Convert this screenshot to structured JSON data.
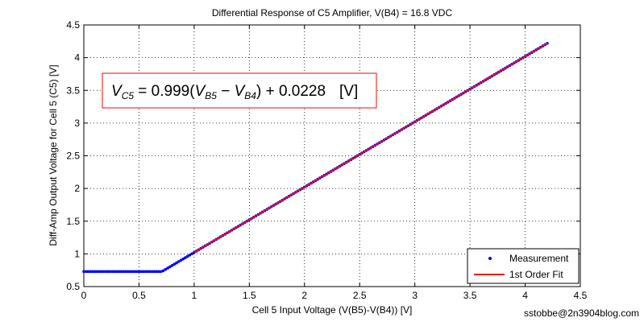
{
  "chart_data": {
    "type": "scatter",
    "title": "Differential Response of C5 Amplifier, V(B4) = 16.8 VDC",
    "xlabel": "Cell 5 Input Voltage (V(B5)-V(B4)) [V]",
    "ylabel": "Diff-Amp Output Voltage for Cell 5 (C5) [V]",
    "xlim": [
      0,
      4.5
    ],
    "ylim": [
      0.5,
      4.5
    ],
    "xticks": [
      0,
      0.5,
      1,
      1.5,
      2,
      2.5,
      3,
      3.5,
      4,
      4.5
    ],
    "xtick_labels": [
      "0",
      "0.5",
      "1",
      "1.5",
      "2",
      "2.5",
      "3",
      "3.5",
      "4",
      "4.5"
    ],
    "yticks": [
      0.5,
      1,
      1.5,
      2,
      2.5,
      3,
      3.5,
      4,
      4.5
    ],
    "ytick_labels": [
      "0.5",
      "1",
      "1.5",
      "2",
      "2.5",
      "3",
      "3.5",
      "4",
      "4.5"
    ],
    "grid": true,
    "legend_position": "bottom-right",
    "series": [
      {
        "name": "Measurement",
        "kind": "points",
        "color": "#0000ff",
        "description": "flat at 0.73 V from 0 to 0.72 V, then rising linearly to 4.22 V at 4.2 V",
        "x_start": 0,
        "x_end": 4.2,
        "x_step": 0.02,
        "knee_x": 0.72,
        "floor_y": 0.73,
        "slope": 0.999,
        "intercept": 0.0228
      },
      {
        "name": "1st Order Fit",
        "kind": "line",
        "color": "#ff0000",
        "x": [
          1.0,
          4.2
        ],
        "y": [
          1.0218,
          4.2186
        ]
      }
    ],
    "annotation": {
      "lhs": "V",
      "lhs_sub": "C5",
      "eq_coef": " = 0.999(",
      "v1": "V",
      "v1_sub": "B5",
      "minus": " − ",
      "v2": "V",
      "v2_sub": "B4",
      "tail": ") + 0.0228",
      "unit": "[V]",
      "border_color": "#ff0000"
    }
  },
  "credit": "sstobbe@2n3904blog.com"
}
